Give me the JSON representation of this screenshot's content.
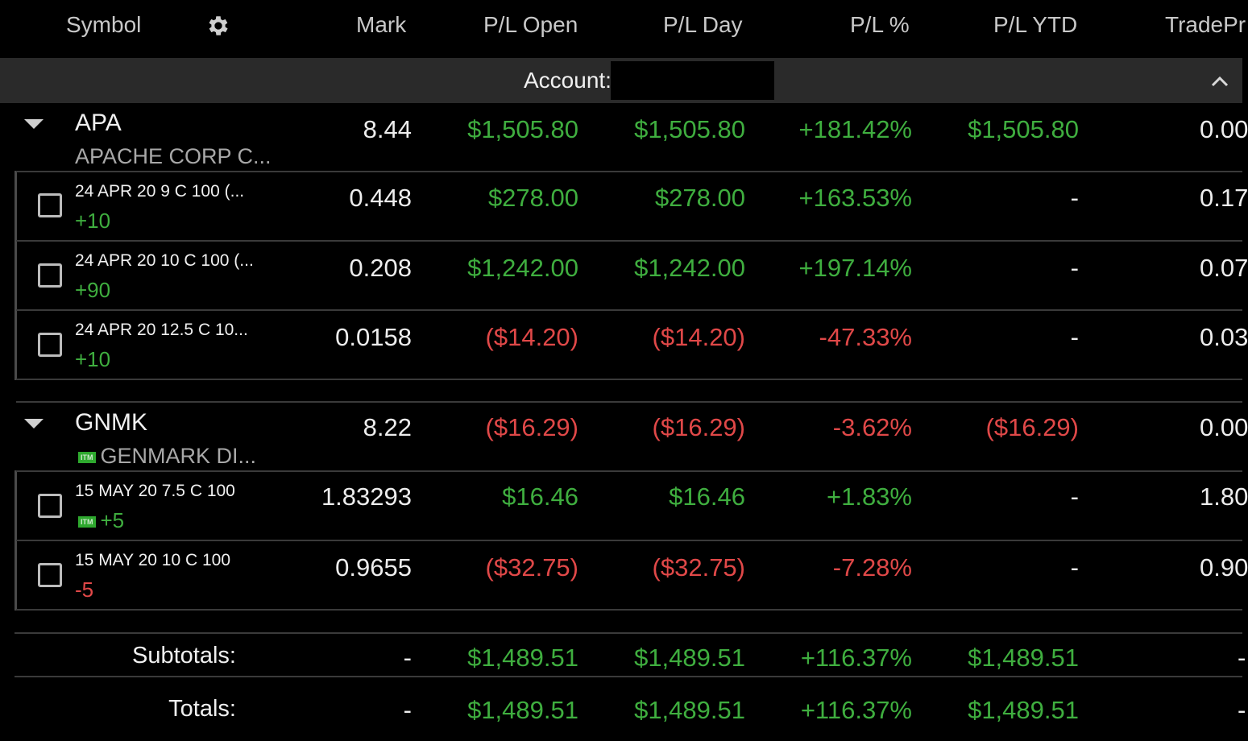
{
  "header": {
    "symbol": "Symbol",
    "mark": "Mark",
    "pl_open": "P/L Open",
    "pl_day": "P/L Day",
    "pl_pct": "P/L %",
    "pl_ytd": "P/L YTD",
    "trade_price": "TradePr",
    "settings_icon": "gear-icon"
  },
  "account": {
    "label": "Account:",
    "value": "",
    "collapse_icon": "chevron-up-icon"
  },
  "colors": {
    "gain": "#3fae3f",
    "loss": "#e04848",
    "itm_badge": "#2ea82e"
  },
  "groups": [
    {
      "symbol": "APA",
      "description": "APACHE CORP C...",
      "itm": false,
      "mark": "8.44",
      "pl_open": "$1,505.80",
      "pl_day": "$1,505.80",
      "pl_pct": "+181.42%",
      "pl_ytd": "$1,505.80",
      "trade_price": "0.00",
      "legs": [
        {
          "description": "24 APR 20 9 C 100 (...",
          "qty": "+10",
          "itm": false,
          "mark": "0.448",
          "pl_open": "$278.00",
          "pl_day": "$278.00",
          "pl_pct": "+163.53%",
          "pl_ytd": "-",
          "trade_price": "0.17"
        },
        {
          "description": "24 APR 20 10 C 100 (...",
          "qty": "+90",
          "itm": false,
          "mark": "0.208",
          "pl_open": "$1,242.00",
          "pl_day": "$1,242.00",
          "pl_pct": "+197.14%",
          "pl_ytd": "-",
          "trade_price": "0.07"
        },
        {
          "description": "24 APR 20 12.5 C 10...",
          "qty": "+10",
          "itm": false,
          "mark": "0.0158",
          "pl_open": "($14.20)",
          "pl_day": "($14.20)",
          "pl_pct": "-47.33%",
          "pl_ytd": "-",
          "trade_price": "0.03"
        }
      ]
    },
    {
      "symbol": "GNMK",
      "description": "GENMARK DI...",
      "itm": true,
      "itm_label": "ITM",
      "mark": "8.22",
      "pl_open": "($16.29)",
      "pl_day": "($16.29)",
      "pl_pct": "-3.62%",
      "pl_ytd": "($16.29)",
      "trade_price": "0.00",
      "legs": [
        {
          "description": "15 MAY 20 7.5 C 100",
          "qty": "+5",
          "itm": true,
          "itm_label": "ITM",
          "mark": "1.83293",
          "pl_open": "$16.46",
          "pl_day": "$16.46",
          "pl_pct": "+1.83%",
          "pl_ytd": "-",
          "trade_price": "1.80"
        },
        {
          "description": "15 MAY 20 10 C 100",
          "qty": "-5",
          "itm": false,
          "mark": "0.9655",
          "pl_open": "($32.75)",
          "pl_day": "($32.75)",
          "pl_pct": "-7.28%",
          "pl_ytd": "-",
          "trade_price": "0.90"
        }
      ]
    }
  ],
  "subtotals": {
    "label": "Subtotals:",
    "mark": "-",
    "pl_open": "$1,489.51",
    "pl_day": "$1,489.51",
    "pl_pct": "+116.37%",
    "pl_ytd": "$1,489.51",
    "trade_price": "-"
  },
  "totals": {
    "label": "Totals:",
    "mark": "-",
    "pl_open": "$1,489.51",
    "pl_day": "$1,489.51",
    "pl_pct": "+116.37%",
    "pl_ytd": "$1,489.51",
    "trade_price": "-"
  }
}
